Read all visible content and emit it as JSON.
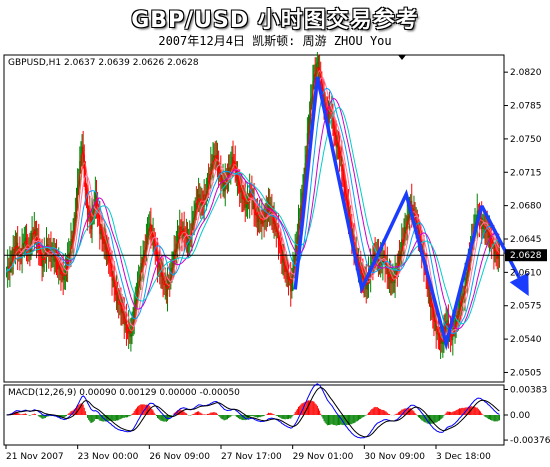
{
  "header": {
    "title": "GBP/USD  小时图交易参考",
    "subtitle": "2007年12月4日   凯斯顿: 周游 ZHOU You"
  },
  "chart_data": [
    {
      "type": "candlestick",
      "title": "GBPUSD,H1  2.0637 2.0639 2.0626 2.0628",
      "symbol_label": "GBPUSD,H1",
      "ohlc_label": "2.0637 2.0639 2.0626 2.0628",
      "current_price": 2.0628,
      "current_price_label": "2.0628",
      "y_ticks": [
        2.082,
        2.0785,
        2.075,
        2.0715,
        2.068,
        2.0645,
        2.061,
        2.0575,
        2.054,
        2.0505
      ],
      "y_tick_labels": [
        "2.0820",
        "2.0785",
        "2.0750",
        "2.0715",
        "2.0680",
        "2.0645",
        "2.0610",
        "2.0575",
        "2.0540",
        "2.0505"
      ],
      "ylim": [
        2.0495,
        2.0838
      ],
      "x_tick_labels": [
        "21 Nov 2007",
        "23 Nov 00:00",
        "26 Nov 09:00",
        "27 Nov 17:00",
        "29 Nov 01:00",
        "30 Nov 09:00",
        "3 Dec 18:00"
      ],
      "grid": false,
      "price_path": [
        2.061,
        2.062,
        2.064,
        2.0625,
        2.0645,
        2.063,
        2.0655,
        2.064,
        2.062,
        2.0635,
        2.063,
        2.0625,
        2.061,
        2.0605,
        2.063,
        2.065,
        2.07,
        2.0745,
        2.068,
        2.066,
        2.069,
        2.0655,
        2.064,
        2.0625,
        2.06,
        2.058,
        2.057,
        2.055,
        2.0545,
        2.058,
        2.061,
        2.063,
        2.066,
        2.0645,
        2.062,
        2.0605,
        2.059,
        2.061,
        2.0635,
        2.0655,
        2.065,
        2.064,
        2.0665,
        2.069,
        2.068,
        2.0695,
        2.072,
        2.0735,
        2.071,
        2.07,
        2.0715,
        2.073,
        2.0705,
        2.069,
        2.068,
        2.0695,
        2.067,
        2.0665,
        2.0665,
        2.068,
        2.0665,
        2.065,
        2.0625,
        2.061,
        2.0595,
        2.063,
        2.067,
        2.071,
        2.0765,
        2.081,
        2.083,
        2.08,
        2.0775,
        2.078,
        2.075,
        2.0735,
        2.07,
        2.067,
        2.064,
        2.062,
        2.0605,
        2.0595,
        2.0615,
        2.063,
        2.062,
        2.0625,
        2.0605,
        2.06,
        2.0615,
        2.064,
        2.066,
        2.068,
        2.0665,
        2.0645,
        2.062,
        2.059,
        2.0565,
        2.0545,
        2.0535,
        2.056,
        2.054,
        2.0555,
        2.0575,
        2.059,
        2.062,
        2.065,
        2.067,
        2.066,
        2.0655,
        2.0645,
        2.063,
        2.0628
      ],
      "main_annotation": {
        "zigzag": [
          {
            "bar": 65,
            "price": 2.0592
          },
          {
            "bar": 70,
            "price": 2.0815
          },
          {
            "bar": 80,
            "price": 2.0593
          },
          {
            "bar": 90,
            "price": 2.0692
          },
          {
            "bar": 99,
            "price": 2.0535
          },
          {
            "bar": 107,
            "price": 2.068
          }
        ],
        "arrow_to": {
          "bar": 116.5,
          "price": 2.0595
        },
        "color": "#1a3cff"
      },
      "moving_averages": [
        {
          "period": 3,
          "color": "#ff0000"
        },
        {
          "period": 6,
          "color": "#ff5555"
        },
        {
          "period": 10,
          "color": "#ff77aa"
        },
        {
          "period": 16,
          "color": "#00a0ff"
        },
        {
          "period": 24,
          "color": "#cc00cc"
        },
        {
          "period": 30,
          "color": "#00cccc"
        }
      ],
      "colors": {
        "bull": "#008000",
        "bear": "#ff0000",
        "price_line": "#000000",
        "border": "#000000"
      }
    },
    {
      "type": "macd",
      "title": "MACD(12,26,9) 0.00090 0.00129 0.00000 -0.00050",
      "y_ticks": [
        0.00383,
        0.0,
        -0.00376
      ],
      "y_tick_labels": [
        "0.00383",
        "0.00",
        "-0.00376"
      ],
      "ylim": [
        -0.0045,
        0.0045
      ],
      "colors": {
        "hist_pos": "#ff0000",
        "hist_neg": "#008000",
        "macd": "#0000ff",
        "signal": "#000000"
      }
    }
  ]
}
